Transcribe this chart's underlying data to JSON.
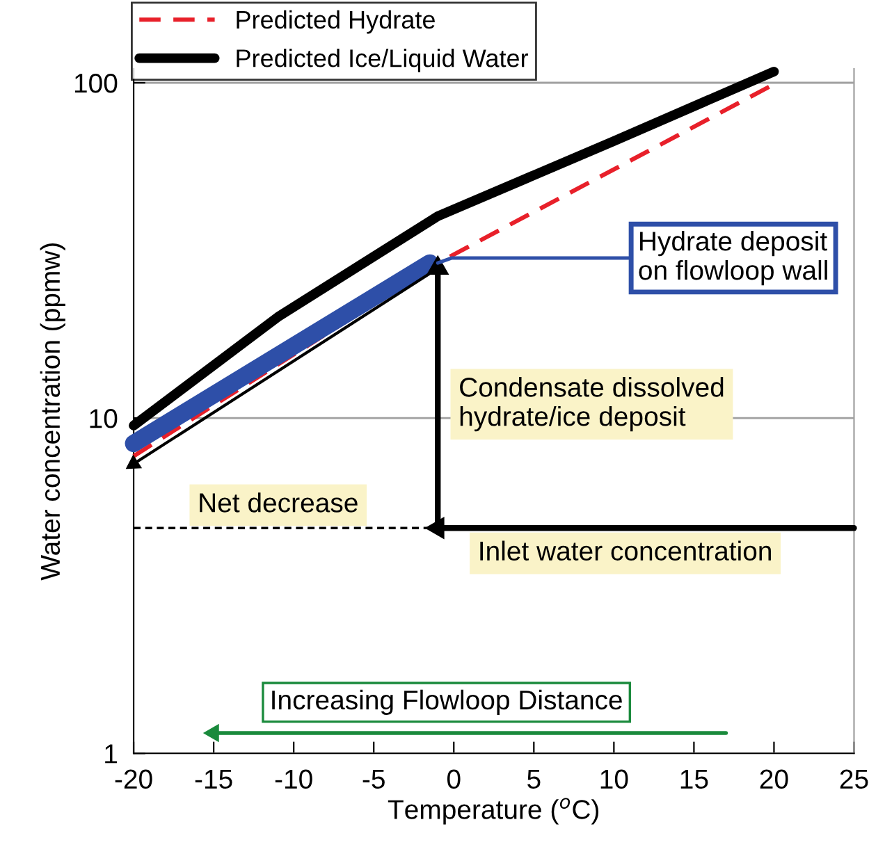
{
  "chart_data": {
    "type": "line",
    "xlabel": "Temperature ($^{o}$C)",
    "ylabel": "Water concentration (ppmw)",
    "xlim": [
      -20,
      25
    ],
    "xticks": [
      -20,
      -15,
      -10,
      -5,
      0,
      5,
      10,
      15,
      20,
      25
    ],
    "ylim": [
      1,
      110
    ],
    "yticks": [
      1,
      10,
      100
    ],
    "log": "y",
    "grid": "y",
    "legend": "top left",
    "series": [
      {
        "name": "Predicted Hydrate",
        "color": "#e8202a",
        "line_style": "dashed",
        "x": [
          -20,
          -1,
          20
        ],
        "values": [
          7.7,
          29,
          99
        ]
      },
      {
        "name": "Predicted Ice/Liquid Water",
        "color": "#000000",
        "line_style": "solid",
        "x": [
          -20,
          -11,
          -1,
          10,
          20
        ],
        "values": [
          9.5,
          20,
          40,
          67,
          108
        ]
      },
      {
        "color": "#2e4fa8",
        "line_style": "solid",
        "x": [
          -20,
          -1.5
        ],
        "values": [
          8.4,
          29
        ]
      },
      {
        "color": "#000000",
        "line_style": "solid",
        "marker": "triangle",
        "x": [
          25,
          -1
        ],
        "values": [
          4.7,
          4.7
        ]
      },
      {
        "color": "#000000",
        "line_style": "solid",
        "marker": "triangle",
        "x": [
          -1,
          -1
        ],
        "values": [
          4.7,
          28
        ]
      },
      {
        "color": "#000000",
        "line_style": "solid",
        "marker": "triangle",
        "x": [
          -1.5,
          -20
        ],
        "values": [
          27,
          7.3
        ]
      },
      {
        "color": "#000000",
        "line_style": "dashed",
        "x": [
          -20,
          -1
        ],
        "values": [
          4.7,
          4.7
        ]
      },
      {
        "color": "#1a8a3c",
        "line_style": "solid",
        "marker": "triangle",
        "x": [
          17,
          -15
        ],
        "values": [
          1.15,
          1.15
        ]
      }
    ],
    "annotations": [
      {
        "text": "Hydrate deposit\non flowloop wall",
        "x": -1,
        "y": 29
      },
      "Condensate dissolved\nhydrate/ice deposit",
      "Net decrease",
      "Inlet water concentration",
      "Increasing Flowloop Distance"
    ]
  }
}
